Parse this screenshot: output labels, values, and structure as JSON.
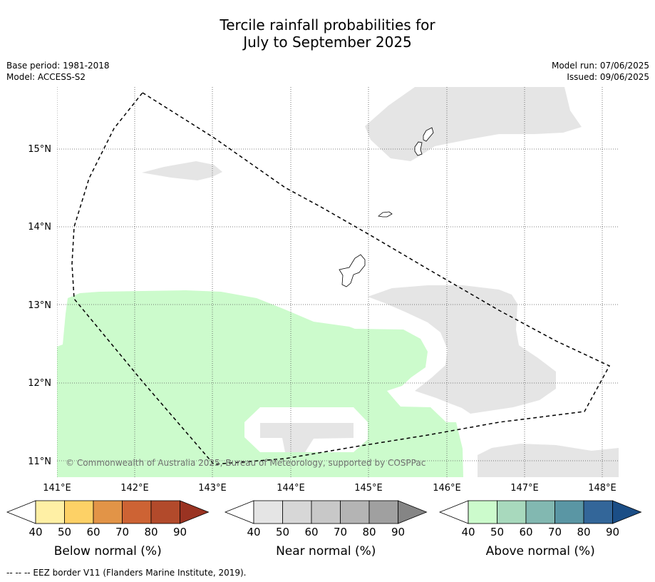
{
  "title": {
    "line1": "Tercile rainfall probabilities for",
    "line2": "July to September 2025"
  },
  "header": {
    "base_period": "Base period: 1981-2018",
    "model": "Model: ACCESS-S2",
    "model_run": "Model run: 07/06/2025",
    "issued": "Issued: 09/06/2025"
  },
  "map": {
    "lat_labels": [
      "15°N",
      "14°N",
      "13°N",
      "12°N",
      "11°N"
    ],
    "lon_labels": [
      "141°E",
      "142°E",
      "143°E",
      "144°E",
      "145°E",
      "146°E",
      "147°E",
      "148°E"
    ],
    "copyright": "© Commonwealth of Australia 2025, Bureau of Meteorology, supported by COSPPac",
    "colors": {
      "near_normal_40": "#e5e5e5",
      "above_normal_40": "#ccfbcc",
      "eez_border": "#000000"
    }
  },
  "legends": [
    {
      "label": "Below normal (%)",
      "ticks": [
        "40",
        "50",
        "60",
        "70",
        "80",
        "90"
      ],
      "colors": [
        "#ffffff",
        "#fff0a5",
        "#fdd166",
        "#e29447",
        "#cd6334",
        "#b24a2b",
        "#9a3322"
      ]
    },
    {
      "label": "Near normal (%)",
      "ticks": [
        "40",
        "50",
        "60",
        "70",
        "80",
        "90"
      ],
      "colors": [
        "#ffffff",
        "#e5e5e5",
        "#d7d7d7",
        "#c8c8c8",
        "#b4b4b4",
        "#a0a0a0",
        "#858585"
      ]
    },
    {
      "label": "Above normal (%)",
      "ticks": [
        "40",
        "50",
        "60",
        "70",
        "80",
        "90"
      ],
      "colors": [
        "#ffffff",
        "#ccfbcc",
        "#a8d9bd",
        "#82b8b1",
        "#5a96a4",
        "#336699",
        "#1b4e86"
      ]
    }
  ],
  "footnote": "--  --  -- EEZ border V11 (Flanders Marine Institute, 2019)."
}
